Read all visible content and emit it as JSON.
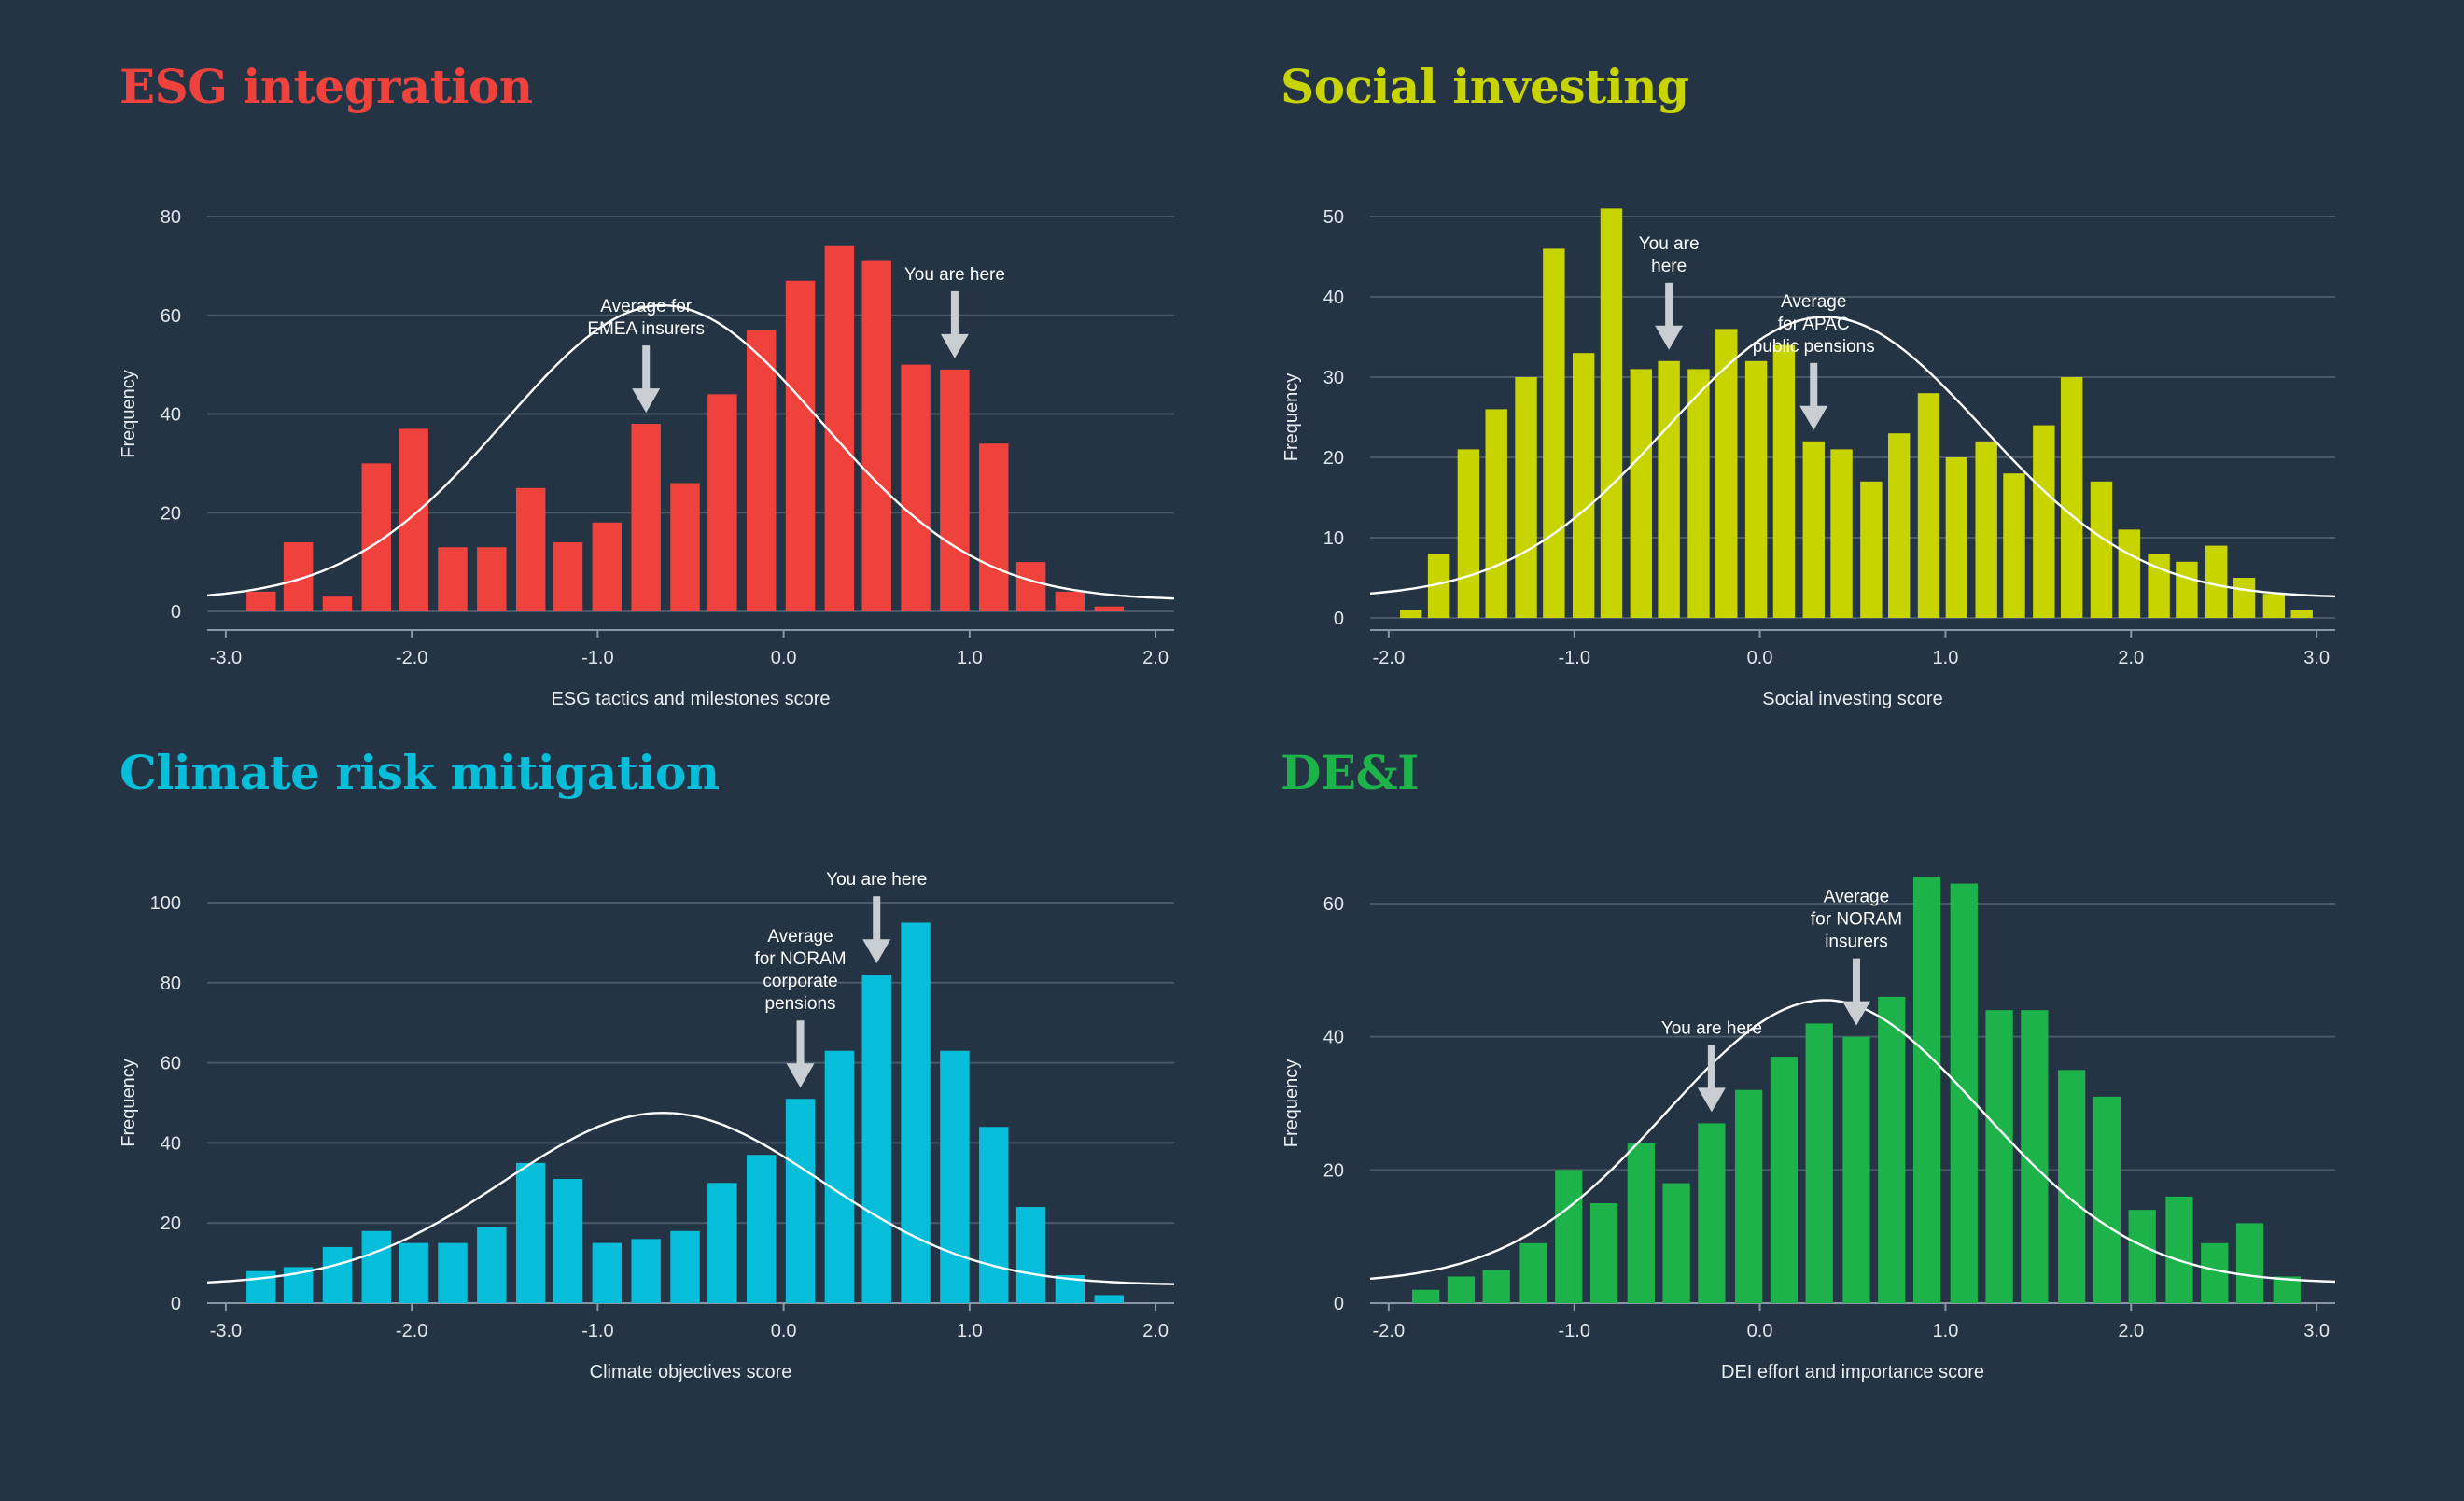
{
  "chart_data": [
    {
      "type": "bar",
      "title": "ESG integration",
      "color": "#f0423d",
      "xlabel": "ESG tactics and milestones score",
      "ylabel": "Frequency",
      "xlim": [
        -3.1,
        2.1
      ],
      "ylim": [
        0,
        80
      ],
      "xticks": [
        -3,
        -2,
        -1,
        0,
        1,
        2
      ],
      "xtick_labels": [
        "-3.0",
        "-2.0",
        "-1.0",
        "0.0",
        "1.0",
        "2.0"
      ],
      "yticks": [
        0,
        20,
        40,
        60,
        80
      ],
      "bin_width": 0.2077,
      "bins": [
        {
          "x": -2.81,
          "y": 4
        },
        {
          "x": -2.61,
          "y": 14
        },
        {
          "x": -2.4,
          "y": 3
        },
        {
          "x": -2.19,
          "y": 30
        },
        {
          "x": -1.99,
          "y": 37
        },
        {
          "x": -1.78,
          "y": 13
        },
        {
          "x": -1.57,
          "y": 13
        },
        {
          "x": -1.36,
          "y": 25
        },
        {
          "x": -1.16,
          "y": 14
        },
        {
          "x": -0.95,
          "y": 18
        },
        {
          "x": -0.74,
          "y": 38
        },
        {
          "x": -0.53,
          "y": 26
        },
        {
          "x": -0.33,
          "y": 44
        },
        {
          "x": -0.12,
          "y": 57
        },
        {
          "x": 0.09,
          "y": 67
        },
        {
          "x": 0.3,
          "y": 74
        },
        {
          "x": 0.5,
          "y": 71
        },
        {
          "x": 0.71,
          "y": 50
        },
        {
          "x": 0.92,
          "y": 49
        },
        {
          "x": 1.13,
          "y": 34
        },
        {
          "x": 1.33,
          "y": 10
        },
        {
          "x": 1.54,
          "y": 4
        },
        {
          "x": 1.75,
          "y": 1
        }
      ],
      "curve": {
        "mean": -0.65,
        "sd": 0.85,
        "peak": 62,
        "base": 2.3
      },
      "annotations": [
        {
          "lines": [
            "Average for",
            "EMEA insurers"
          ],
          "x": -0.74,
          "bar_value": 38
        },
        {
          "lines": [
            "You are here"
          ],
          "x": 0.92,
          "bar_value": 49
        }
      ]
    },
    {
      "type": "bar",
      "title": "Social investing",
      "color": "#c8d400",
      "xlabel": "Social investing score",
      "ylabel": "Frequency",
      "xlim": [
        -2.1,
        3.1
      ],
      "ylim": [
        0,
        50
      ],
      "xticks": [
        -2,
        -1,
        0,
        1,
        2,
        3
      ],
      "xtick_labels": [
        "-2.0",
        "-1.0",
        "0.0",
        "1.0",
        "2.0",
        "3.0"
      ],
      "yticks": [
        0,
        10,
        20,
        30,
        40,
        50
      ],
      "bin_width": 0.1548,
      "bins": [
        {
          "x": -1.88,
          "y": 1
        },
        {
          "x": -1.73,
          "y": 8
        },
        {
          "x": -1.57,
          "y": 21
        },
        {
          "x": -1.42,
          "y": 26
        },
        {
          "x": -1.26,
          "y": 30
        },
        {
          "x": -1.11,
          "y": 46
        },
        {
          "x": -0.95,
          "y": 33
        },
        {
          "x": -0.8,
          "y": 51
        },
        {
          "x": -0.64,
          "y": 31
        },
        {
          "x": -0.49,
          "y": 32
        },
        {
          "x": -0.33,
          "y": 31
        },
        {
          "x": -0.18,
          "y": 36
        },
        {
          "x": -0.02,
          "y": 32
        },
        {
          "x": 0.13,
          "y": 34
        },
        {
          "x": 0.29,
          "y": 22
        },
        {
          "x": 0.44,
          "y": 21
        },
        {
          "x": 0.6,
          "y": 17
        },
        {
          "x": 0.75,
          "y": 23
        },
        {
          "x": 0.91,
          "y": 28
        },
        {
          "x": 1.06,
          "y": 20
        },
        {
          "x": 1.22,
          "y": 22
        },
        {
          "x": 1.37,
          "y": 18
        },
        {
          "x": 1.53,
          "y": 24
        },
        {
          "x": 1.68,
          "y": 30
        },
        {
          "x": 1.84,
          "y": 17
        },
        {
          "x": 1.99,
          "y": 11
        },
        {
          "x": 2.15,
          "y": 8
        },
        {
          "x": 2.3,
          "y": 7
        },
        {
          "x": 2.46,
          "y": 9
        },
        {
          "x": 2.61,
          "y": 5
        },
        {
          "x": 2.77,
          "y": 3
        },
        {
          "x": 2.92,
          "y": 1
        }
      ],
      "curve": {
        "mean": 0.35,
        "sd": 0.85,
        "peak": 37.5,
        "base": 2.5
      },
      "annotations": [
        {
          "lines": [
            "You are",
            "here"
          ],
          "x": -0.49,
          "bar_value": 32
        },
        {
          "lines": [
            "Average",
            "for APAC",
            "public pensions"
          ],
          "x": 0.29,
          "bar_value": 22
        }
      ]
    },
    {
      "type": "bar",
      "title": "Climate risk mitigation",
      "color": "#06bed9",
      "xlabel": "Climate objectives score",
      "ylabel": "Frequency",
      "xlim": [
        -3.1,
        2.1
      ],
      "ylim": [
        0,
        100
      ],
      "xticks": [
        -3,
        -2,
        -1,
        0,
        1,
        2
      ],
      "xtick_labels": [
        "-3.0",
        "-2.0",
        "-1.0",
        "0.0",
        "1.0",
        "2.0"
      ],
      "yticks": [
        0,
        20,
        40,
        60,
        80,
        100
      ],
      "bin_width": 0.2077,
      "bins": [
        {
          "x": -2.81,
          "y": 8
        },
        {
          "x": -2.61,
          "y": 9
        },
        {
          "x": -2.4,
          "y": 14
        },
        {
          "x": -2.19,
          "y": 18
        },
        {
          "x": -1.99,
          "y": 15
        },
        {
          "x": -1.78,
          "y": 15
        },
        {
          "x": -1.57,
          "y": 19
        },
        {
          "x": -1.36,
          "y": 35
        },
        {
          "x": -1.16,
          "y": 31
        },
        {
          "x": -0.95,
          "y": 15
        },
        {
          "x": -0.74,
          "y": 16
        },
        {
          "x": -0.53,
          "y": 18
        },
        {
          "x": -0.33,
          "y": 30
        },
        {
          "x": -0.12,
          "y": 37
        },
        {
          "x": 0.09,
          "y": 51
        },
        {
          "x": 0.3,
          "y": 63
        },
        {
          "x": 0.5,
          "y": 82
        },
        {
          "x": 0.71,
          "y": 95
        },
        {
          "x": 0.92,
          "y": 63
        },
        {
          "x": 1.13,
          "y": 44
        },
        {
          "x": 1.33,
          "y": 24
        },
        {
          "x": 1.54,
          "y": 7
        },
        {
          "x": 1.75,
          "y": 2
        }
      ],
      "curve": {
        "mean": -0.65,
        "sd": 0.85,
        "peak": 47.5,
        "base": 4.5
      },
      "annotations": [
        {
          "lines": [
            "Average",
            "for NORAM",
            "corporate",
            "pensions"
          ],
          "x": 0.09,
          "bar_value": 51
        },
        {
          "lines": [
            "You are here"
          ],
          "x": 0.5,
          "bar_value": 82
        }
      ]
    },
    {
      "type": "bar",
      "title": "DE&I",
      "color": "#1db24a",
      "xlabel": "DEI effort and importance score",
      "ylabel": "Frequency",
      "xlim": [
        -2.1,
        3.1
      ],
      "ylim": [
        0,
        60
      ],
      "xticks": [
        -2,
        -1,
        0,
        1,
        2,
        3
      ],
      "xtick_labels": [
        "-2.0",
        "-1.0",
        "0.0",
        "1.0",
        "2.0",
        "3.0"
      ],
      "yticks": [
        0,
        20,
        40,
        60
      ],
      "bin_width": 0.1935,
      "bins": [
        {
          "x": -1.8,
          "y": 2
        },
        {
          "x": -1.61,
          "y": 4
        },
        {
          "x": -1.42,
          "y": 5
        },
        {
          "x": -1.22,
          "y": 9
        },
        {
          "x": -1.03,
          "y": 20
        },
        {
          "x": -0.84,
          "y": 15
        },
        {
          "x": -0.64,
          "y": 24
        },
        {
          "x": -0.45,
          "y": 18
        },
        {
          "x": -0.26,
          "y": 27
        },
        {
          "x": -0.06,
          "y": 32
        },
        {
          "x": 0.13,
          "y": 37
        },
        {
          "x": 0.32,
          "y": 42
        },
        {
          "x": 0.52,
          "y": 40
        },
        {
          "x": 0.71,
          "y": 46
        },
        {
          "x": 0.9,
          "y": 64
        },
        {
          "x": 1.1,
          "y": 63
        },
        {
          "x": 1.29,
          "y": 44
        },
        {
          "x": 1.48,
          "y": 44
        },
        {
          "x": 1.68,
          "y": 35
        },
        {
          "x": 1.87,
          "y": 31
        },
        {
          "x": 2.06,
          "y": 14
        },
        {
          "x": 2.26,
          "y": 16
        },
        {
          "x": 2.45,
          "y": 9
        },
        {
          "x": 2.64,
          "y": 12
        },
        {
          "x": 2.84,
          "y": 4
        }
      ],
      "curve": {
        "mean": 0.35,
        "sd": 0.85,
        "peak": 45.5,
        "base": 3
      },
      "annotations": [
        {
          "lines": [
            "You are here"
          ],
          "x": -0.26,
          "bar_value": 27
        },
        {
          "lines": [
            "Average",
            "for NORAM",
            "insurers"
          ],
          "x": 0.52,
          "bar_value": 40
        }
      ]
    }
  ]
}
